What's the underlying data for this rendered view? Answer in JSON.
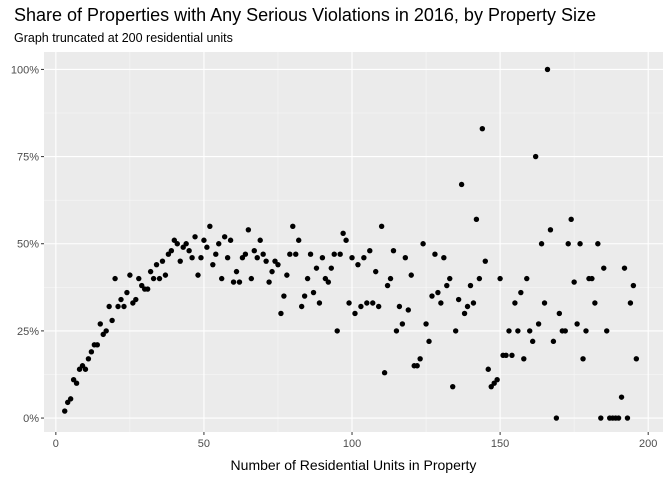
{
  "chart_data": {
    "type": "scatter",
    "title": "Share of Properties with Any Serious Violations in 2016, by Property Size",
    "subtitle": "Graph truncated at 200 residential units",
    "xlabel": "Number of Residential Units in Property",
    "ylabel": "",
    "xlim": [
      -4,
      205
    ],
    "ylim": [
      -0.04,
      1.05
    ],
    "x_ticks": [
      0,
      50,
      100,
      150,
      200
    ],
    "x_tick_labels": [
      "0",
      "50",
      "100",
      "150",
      "200"
    ],
    "y_ticks": [
      0,
      0.25,
      0.5,
      0.75,
      1.0
    ],
    "y_tick_labels": [
      "0%",
      "25%",
      "50%",
      "75%",
      "100%"
    ],
    "grid": true,
    "legend": "none",
    "point_color": "#000000",
    "panel_color": "#ebebeb",
    "points": [
      [
        3,
        0.02
      ],
      [
        4,
        0.045
      ],
      [
        5,
        0.055
      ],
      [
        6,
        0.11
      ],
      [
        7,
        0.1
      ],
      [
        8,
        0.14
      ],
      [
        9,
        0.15
      ],
      [
        10,
        0.14
      ],
      [
        11,
        0.17
      ],
      [
        12,
        0.19
      ],
      [
        13,
        0.21
      ],
      [
        14,
        0.21
      ],
      [
        15,
        0.27
      ],
      [
        16,
        0.24
      ],
      [
        17,
        0.25
      ],
      [
        18,
        0.32
      ],
      [
        19,
        0.28
      ],
      [
        20,
        0.4
      ],
      [
        21,
        0.32
      ],
      [
        22,
        0.34
      ],
      [
        23,
        0.32
      ],
      [
        24,
        0.36
      ],
      [
        25,
        0.41
      ],
      [
        26,
        0.33
      ],
      [
        27,
        0.34
      ],
      [
        28,
        0.4
      ],
      [
        29,
        0.38
      ],
      [
        30,
        0.37
      ],
      [
        31,
        0.37
      ],
      [
        32,
        0.42
      ],
      [
        33,
        0.4
      ],
      [
        34,
        0.44
      ],
      [
        35,
        0.4
      ],
      [
        36,
        0.45
      ],
      [
        37,
        0.41
      ],
      [
        38,
        0.47
      ],
      [
        39,
        0.48
      ],
      [
        40,
        0.51
      ],
      [
        41,
        0.5
      ],
      [
        42,
        0.45
      ],
      [
        43,
        0.49
      ],
      [
        44,
        0.5
      ],
      [
        45,
        0.48
      ],
      [
        46,
        0.46
      ],
      [
        47,
        0.52
      ],
      [
        48,
        0.41
      ],
      [
        49,
        0.46
      ],
      [
        50,
        0.51
      ],
      [
        51,
        0.49
      ],
      [
        52,
        0.55
      ],
      [
        53,
        0.44
      ],
      [
        54,
        0.47
      ],
      [
        55,
        0.5
      ],
      [
        56,
        0.4
      ],
      [
        57,
        0.52
      ],
      [
        58,
        0.46
      ],
      [
        59,
        0.51
      ],
      [
        60,
        0.39
      ],
      [
        61,
        0.42
      ],
      [
        62,
        0.39
      ],
      [
        63,
        0.46
      ],
      [
        64,
        0.47
      ],
      [
        65,
        0.54
      ],
      [
        66,
        0.4
      ],
      [
        67,
        0.48
      ],
      [
        68,
        0.46
      ],
      [
        69,
        0.51
      ],
      [
        70,
        0.47
      ],
      [
        71,
        0.45
      ],
      [
        72,
        0.39
      ],
      [
        73,
        0.42
      ],
      [
        74,
        0.45
      ],
      [
        75,
        0.44
      ],
      [
        76,
        0.3
      ],
      [
        77,
        0.35
      ],
      [
        78,
        0.41
      ],
      [
        79,
        0.47
      ],
      [
        80,
        0.55
      ],
      [
        81,
        0.47
      ],
      [
        82,
        0.51
      ],
      [
        83,
        0.32
      ],
      [
        84,
        0.35
      ],
      [
        85,
        0.4
      ],
      [
        86,
        0.47
      ],
      [
        87,
        0.36
      ],
      [
        88,
        0.43
      ],
      [
        89,
        0.33
      ],
      [
        90,
        0.46
      ],
      [
        91,
        0.4
      ],
      [
        92,
        0.39
      ],
      [
        93,
        0.43
      ],
      [
        94,
        0.47
      ],
      [
        95,
        0.25
      ],
      [
        96,
        0.47
      ],
      [
        97,
        0.53
      ],
      [
        98,
        0.51
      ],
      [
        99,
        0.33
      ],
      [
        100,
        0.46
      ],
      [
        101,
        0.3
      ],
      [
        102,
        0.44
      ],
      [
        103,
        0.32
      ],
      [
        104,
        0.46
      ],
      [
        105,
        0.33
      ],
      [
        106,
        0.48
      ],
      [
        107,
        0.33
      ],
      [
        108,
        0.42
      ],
      [
        109,
        0.32
      ],
      [
        110,
        0.55
      ],
      [
        111,
        0.13
      ],
      [
        112,
        0.38
      ],
      [
        113,
        0.4
      ],
      [
        114,
        0.48
      ],
      [
        115,
        0.25
      ],
      [
        116,
        0.32
      ],
      [
        117,
        0.27
      ],
      [
        118,
        0.46
      ],
      [
        119,
        0.31
      ],
      [
        120,
        0.41
      ],
      [
        121,
        0.15
      ],
      [
        122,
        0.15
      ],
      [
        123,
        0.17
      ],
      [
        124,
        0.5
      ],
      [
        125,
        0.27
      ],
      [
        126,
        0.22
      ],
      [
        127,
        0.35
      ],
      [
        128,
        0.47
      ],
      [
        129,
        0.36
      ],
      [
        130,
        0.33
      ],
      [
        131,
        0.46
      ],
      [
        132,
        0.38
      ],
      [
        133,
        0.4
      ],
      [
        134,
        0.09
      ],
      [
        135,
        0.25
      ],
      [
        136,
        0.34
      ],
      [
        137,
        0.67
      ],
      [
        138,
        0.3
      ],
      [
        139,
        0.32
      ],
      [
        140,
        0.38
      ],
      [
        141,
        0.33
      ],
      [
        142,
        0.57
      ],
      [
        143,
        0.4
      ],
      [
        144,
        0.83
      ],
      [
        145,
        0.45
      ],
      [
        146,
        0.14
      ],
      [
        147,
        0.09
      ],
      [
        148,
        0.1
      ],
      [
        149,
        0.11
      ],
      [
        150,
        0.4
      ],
      [
        151,
        0.18
      ],
      [
        152,
        0.18
      ],
      [
        153,
        0.25
      ],
      [
        154,
        0.18
      ],
      [
        155,
        0.33
      ],
      [
        156,
        0.25
      ],
      [
        157,
        0.36
      ],
      [
        158,
        0.17
      ],
      [
        159,
        0.4
      ],
      [
        160,
        0.25
      ],
      [
        161,
        0.22
      ],
      [
        162,
        0.75
      ],
      [
        163,
        0.27
      ],
      [
        164,
        0.5
      ],
      [
        165,
        0.33
      ],
      [
        166,
        1.0
      ],
      [
        167,
        0.54
      ],
      [
        168,
        0.22
      ],
      [
        169,
        0.0
      ],
      [
        170,
        0.3
      ],
      [
        171,
        0.25
      ],
      [
        172,
        0.25
      ],
      [
        173,
        0.5
      ],
      [
        174,
        0.57
      ],
      [
        175,
        0.39
      ],
      [
        176,
        0.27
      ],
      [
        177,
        0.5
      ],
      [
        178,
        0.17
      ],
      [
        179,
        0.25
      ],
      [
        180,
        0.4
      ],
      [
        181,
        0.4
      ],
      [
        182,
        0.33
      ],
      [
        183,
        0.5
      ],
      [
        184,
        0.0
      ],
      [
        185,
        0.43
      ],
      [
        186,
        0.25
      ],
      [
        187,
        0.0
      ],
      [
        188,
        0.0
      ],
      [
        189,
        0.0
      ],
      [
        190,
        0.0
      ],
      [
        191,
        0.06
      ],
      [
        192,
        0.43
      ],
      [
        193,
        0.0
      ],
      [
        194,
        0.33
      ],
      [
        195,
        0.38
      ],
      [
        196,
        0.17
      ]
    ]
  }
}
